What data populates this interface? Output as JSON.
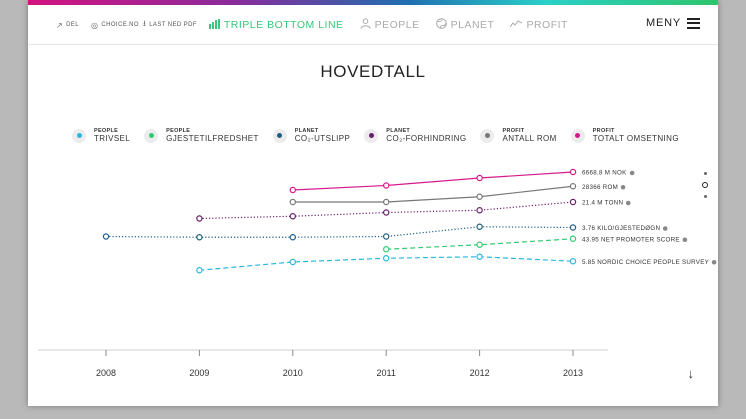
{
  "topbar": {
    "share_label": "DEL",
    "site_label": "CHOICE.NO",
    "download_label": "LAST NED PDF",
    "nav": [
      {
        "label": "TRIPLE BOTTOM LINE",
        "icon": "bar-chart-icon"
      },
      {
        "label": "PEOPLE",
        "icon": "person-icon"
      },
      {
        "label": "PLANET",
        "icon": "globe-icon"
      },
      {
        "label": "PROFIT",
        "icon": "trend-line-icon"
      }
    ],
    "menu_label": "MENY"
  },
  "page": {
    "title": "HOVEDTALL"
  },
  "legend": [
    {
      "category": "PEOPLE",
      "label": "TRIVSEL",
      "color": "#2ab7de"
    },
    {
      "category": "PEOPLE",
      "label": "GJESTETILFREDSHET",
      "color": "#2ecc71"
    },
    {
      "category": "PLANET",
      "label": "CO₂-UTSLIPP",
      "color": "#1d5f84"
    },
    {
      "category": "PLANET",
      "label": "CO₂-FORHINDRING",
      "color": "#6b1e6b"
    },
    {
      "category": "PROFIT",
      "label": "ANTALL ROM",
      "color": "#777777"
    },
    {
      "category": "PROFIT",
      "label": "TOTALT OMSETNING",
      "color": "#d61a8b"
    }
  ],
  "chart_data": {
    "type": "line",
    "x": [
      2008,
      2009,
      2010,
      2011,
      2012,
      2013
    ],
    "grid": false,
    "series": [
      {
        "name": "TOTALT OMSETNING",
        "color": "#d61a8b",
        "dash": "solid",
        "y": [
          null,
          null,
          0.56,
          0.62,
          0.72,
          0.8
        ],
        "end_label": "6668.8 M NOK"
      },
      {
        "name": "ANTALL ROM",
        "color": "#777777",
        "dash": "solid",
        "y": [
          null,
          null,
          0.4,
          0.4,
          0.47,
          0.61
        ],
        "end_label": "28366 ROM"
      },
      {
        "name": "CO₂-FORHINDRING",
        "color": "#6b1e6b",
        "dash": "dotted",
        "y": [
          null,
          0.18,
          0.21,
          0.26,
          0.29,
          0.4
        ],
        "end_label": "21.4 M TONN"
      },
      {
        "name": "CO₂-UTSLIPP",
        "color": "#1d5f84",
        "dash": "dotted",
        "y": [
          -0.06,
          -0.07,
          -0.07,
          -0.06,
          0.07,
          0.06
        ],
        "end_label": "3.76 KILO/GJESTEDØGN"
      },
      {
        "name": "GJESTETILFREDSHET",
        "color": "#2ecc71",
        "dash": "dashed",
        "y": [
          null,
          null,
          null,
          -0.23,
          -0.17,
          -0.09
        ],
        "end_label": "43.95 NET PROMOTER SCORE"
      },
      {
        "name": "TRIVSEL",
        "color": "#2ab7de",
        "dash": "dashed",
        "y": [
          null,
          -0.51,
          -0.4,
          -0.35,
          -0.33,
          -0.39
        ],
        "end_label": "5.85 NORDIC CHOICE PEOPLE SURVEY"
      }
    ]
  }
}
